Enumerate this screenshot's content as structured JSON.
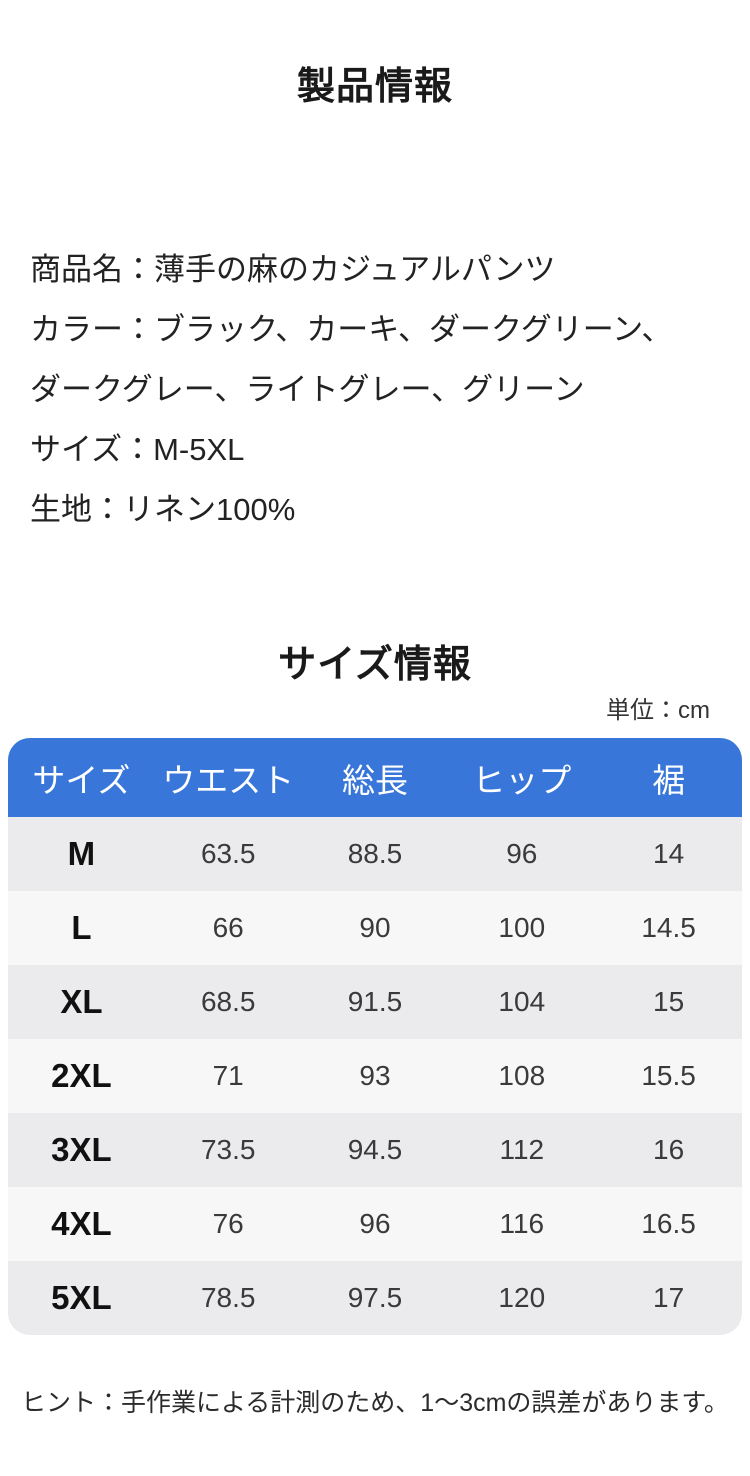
{
  "header": {
    "title": "製品情報"
  },
  "product_info": {
    "lines": [
      "商品名：薄手の麻のカジュアルパンツ",
      "カラー：ブラック、カーキ、ダークグリーン、",
      "ダークグレー、ライトグレー、グリーン",
      "サイズ：M-5XL",
      "生地：リネン100%"
    ],
    "fields": {
      "product_name": "薄手の麻のカジュアルパンツ",
      "colors": [
        "ブラック",
        "カーキ",
        "ダークグリーン",
        "ダークグレー",
        "ライトグレー",
        "グリーン"
      ],
      "size_range": "M-5XL",
      "fabric": "リネン100%"
    }
  },
  "size_section": {
    "title": "サイズ情報",
    "unit": "単位：cm",
    "table": {
      "columns": [
        "サイズ",
        "ウエスト",
        "総長",
        "ヒップ",
        "裾"
      ],
      "rows": [
        [
          "M",
          "63.5",
          "88.5",
          "96",
          "14"
        ],
        [
          "L",
          "66",
          "90",
          "100",
          "14.5"
        ],
        [
          "XL",
          "68.5",
          "91.5",
          "104",
          "15"
        ],
        [
          "2XL",
          "71",
          "93",
          "108",
          "15.5"
        ],
        [
          "3XL",
          "73.5",
          "94.5",
          "112",
          "16"
        ],
        [
          "4XL",
          "76",
          "96",
          "116",
          "16.5"
        ],
        [
          "5XL",
          "78.5",
          "97.5",
          "120",
          "17"
        ]
      ]
    },
    "hint": "ヒント：手作業による計測のため、1～3cmの誤差があります。"
  },
  "colors": {
    "table_header_bg": "#3876d9",
    "table_header_text": "#ffffff",
    "row_dark": "#ebebed",
    "row_light": "#f7f7f7",
    "text_primary": "#1a1a1a",
    "text_secondary": "#3a3a3a"
  }
}
